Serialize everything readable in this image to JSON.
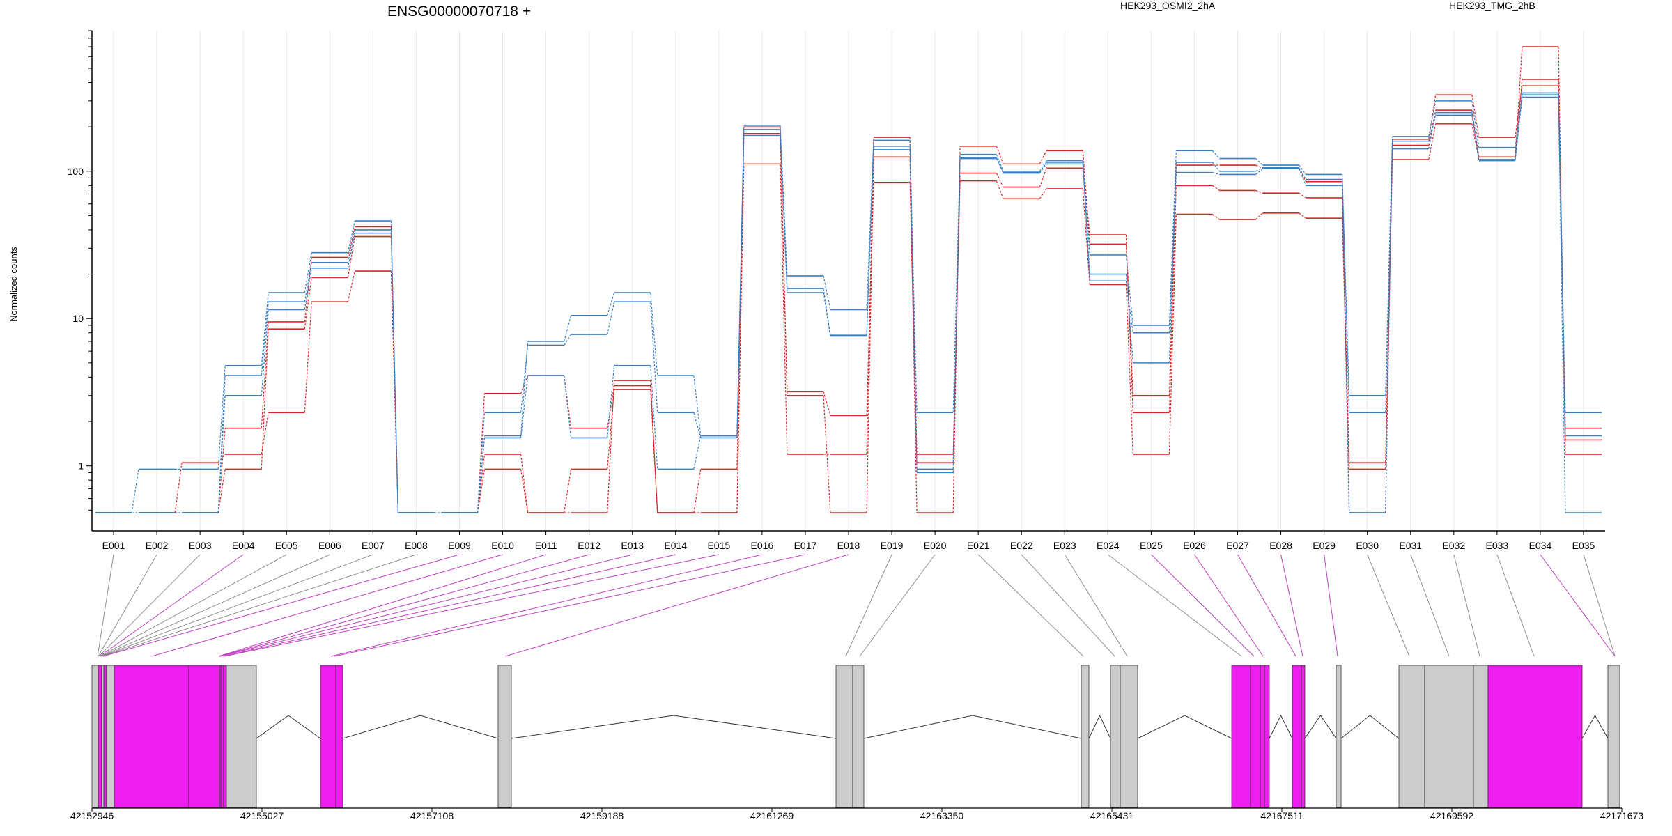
{
  "title": "ENSG00000070718 +",
  "legend": [
    {
      "name": "HEK293_OSMI2_2hA",
      "color": "#d62728"
    },
    {
      "name": "HEK293_TMG_2hB",
      "color": "#3a7fc1"
    }
  ],
  "colors": {
    "osmi": "#d62728",
    "tmg": "#3a7fc1",
    "exon_gray": "#cccccc",
    "exon_magenta": "#ee1fee",
    "connector_gray": "#909090",
    "connector_magenta": "#c040c0"
  },
  "chart_data": {
    "type": "line",
    "ylabel": "Normalized counts",
    "yscale": "log",
    "ylim": [
      0.45,
      900
    ],
    "yticks": [
      {
        "value": 1,
        "label": "1"
      },
      {
        "value": 10,
        "label": "10"
      },
      {
        "value": 100,
        "label": "100"
      }
    ],
    "categories": [
      "E001",
      "E002",
      "E003",
      "E004",
      "E005",
      "E006",
      "E007",
      "E008",
      "E009",
      "E010",
      "E011",
      "E012",
      "E013",
      "E014",
      "E015",
      "E016",
      "E017",
      "E018",
      "E019",
      "E020",
      "E021",
      "E022",
      "E023",
      "E024",
      "E025",
      "E026",
      "E027",
      "E028",
      "E029",
      "E030",
      "E031",
      "E032",
      "E033",
      "E034",
      "E035"
    ],
    "series": [
      {
        "group": "HEK293_OSMI2_2hA",
        "values": [
          0.48,
          0.48,
          1.05,
          1.2,
          2.3,
          13,
          21,
          0.48,
          0.48,
          1.2,
          0.48,
          0.48,
          3.8,
          0.48,
          0.48,
          112,
          1.2,
          1.2,
          170,
          1.2,
          86,
          65,
          76,
          17,
          1.2,
          51,
          47,
          52,
          48,
          0.95,
          120,
          210,
          120,
          700,
          1.2
        ]
      },
      {
        "group": "HEK293_OSMI2_2hA",
        "values": [
          0.48,
          0.48,
          0.48,
          0.95,
          8.5,
          19,
          36,
          0.48,
          0.48,
          3.1,
          4.1,
          1.8,
          3.5,
          0.48,
          0.48,
          180,
          3.2,
          2.2,
          84,
          1.05,
          97,
          78,
          105,
          37,
          2.3,
          80,
          74,
          71,
          66,
          1.05,
          150,
          260,
          125,
          420,
          1.5
        ]
      },
      {
        "group": "HEK293_OSMI2_2hA",
        "values": [
          0.48,
          0.48,
          0.48,
          1.8,
          9.5,
          26,
          42,
          0.48,
          0.48,
          0.95,
          0.48,
          0.95,
          3.3,
          0.48,
          0.95,
          200,
          3.0,
          0.48,
          125,
          0.48,
          148,
          112,
          138,
          32,
          3.0,
          110,
          110,
          105,
          85,
          0.48,
          165,
          330,
          170,
          380,
          1.8
        ]
      },
      {
        "group": "HEK293_TMG_2hB",
        "values": [
          0.48,
          0.95,
          0.95,
          4.8,
          15,
          28,
          46,
          0.48,
          0.48,
          1.6,
          7.0,
          10.5,
          15,
          4.1,
          1.6,
          205,
          19.5,
          11.5,
          162,
          2.3,
          130,
          100,
          118,
          27,
          9,
          138,
          122,
          110,
          95,
          3.0,
          172,
          300,
          145,
          340,
          2.3
        ]
      },
      {
        "group": "HEK293_TMG_2hB",
        "values": [
          0.48,
          0.48,
          0.48,
          4.1,
          13,
          24,
          40,
          0.48,
          0.48,
          2.3,
          6.6,
          7.8,
          13,
          2.3,
          1.55,
          192,
          16,
          7.7,
          148,
          0.95,
          124,
          97,
          112,
          20,
          5,
          115,
          100,
          106,
          88,
          2.3,
          142,
          250,
          118,
          318,
          0.48
        ]
      },
      {
        "group": "HEK293_TMG_2hB",
        "values": [
          0.48,
          0.48,
          0.48,
          3.0,
          11.5,
          22,
          38,
          0.48,
          0.48,
          1.55,
          4.1,
          1.55,
          4.8,
          0.95,
          1.6,
          175,
          15,
          7.6,
          140,
          0.9,
          122,
          98,
          115,
          18,
          8,
          98,
          95,
          104,
          80,
          0.48,
          160,
          240,
          120,
          330,
          1.6
        ]
      }
    ]
  },
  "gene_model": {
    "coord_ticks": [
      "42152946",
      "42155027",
      "42157108",
      "42159188",
      "42161269",
      "42163350",
      "42165431",
      "42167511",
      "42169592",
      "42171673"
    ],
    "coord_range": [
      42152946,
      42171673
    ]
  }
}
